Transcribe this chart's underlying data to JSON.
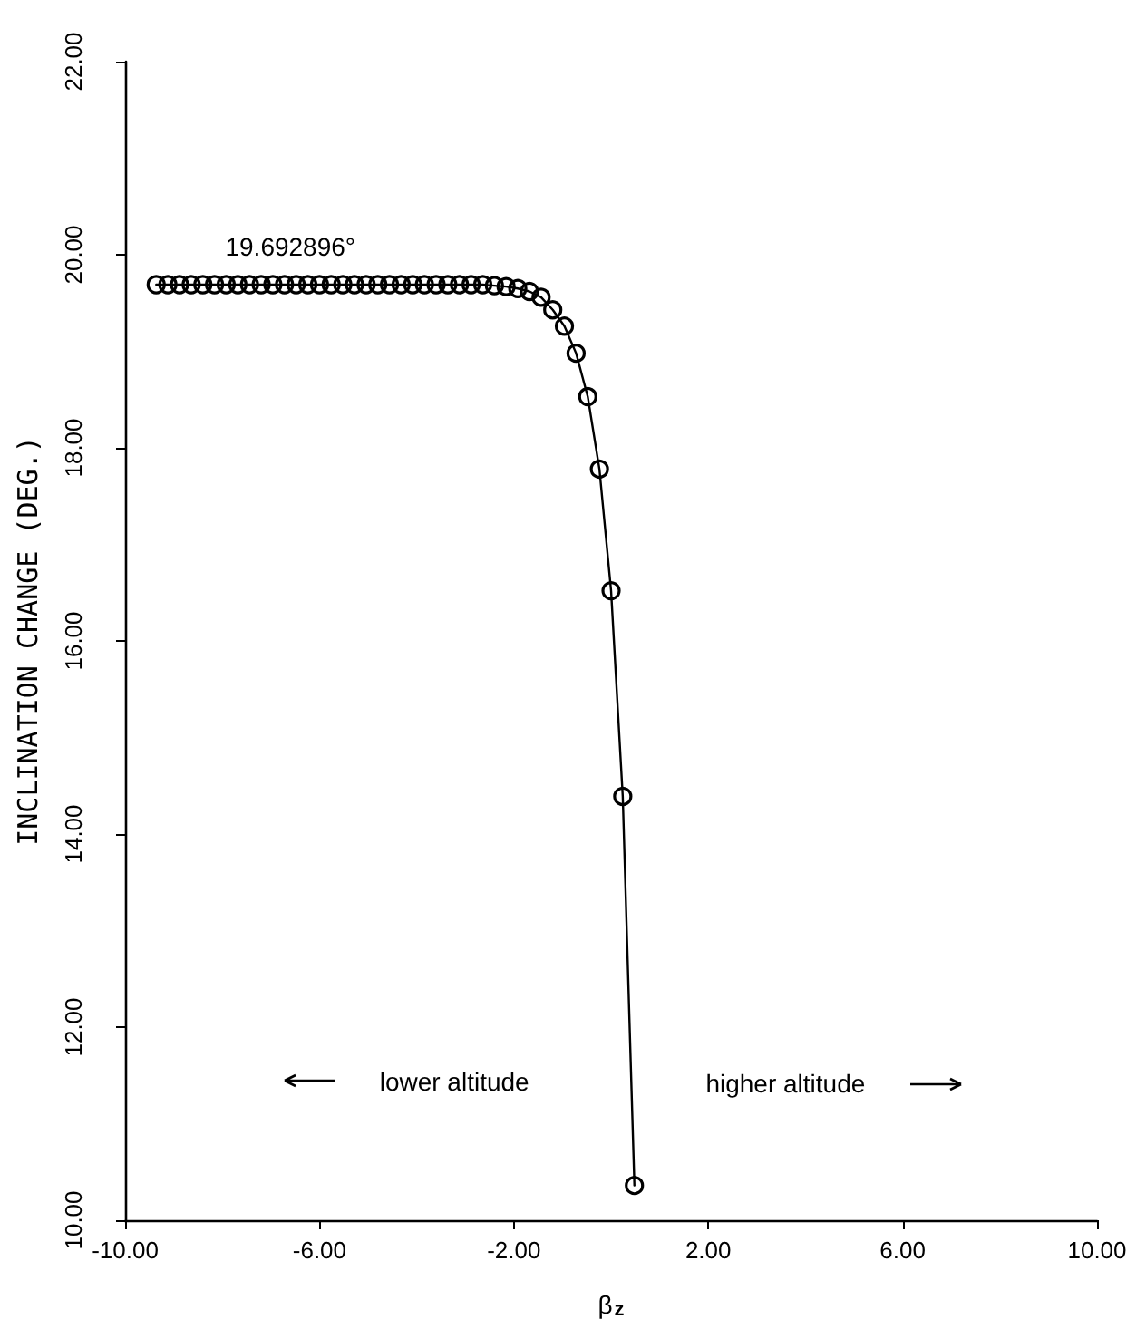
{
  "chart_data": {
    "type": "line",
    "xlabel": "β$_{z}$",
    "ylabel": "INCLINATION CHANGE (DEG.)",
    "x": [
      -9.36,
      -9.12,
      -8.88,
      -8.64,
      -8.4,
      -8.16,
      -7.92,
      -7.68,
      -7.44,
      -7.2,
      -6.96,
      -6.72,
      -6.48,
      -6.24,
      -6.0,
      -5.76,
      -5.52,
      -5.28,
      -5.04,
      -4.8,
      -4.56,
      -4.32,
      -4.08,
      -3.84,
      -3.6,
      -3.36,
      -3.12,
      -2.88,
      -2.64,
      -2.4,
      -2.16,
      -1.92,
      -1.68,
      -1.44,
      -1.2,
      -0.96,
      -0.72,
      -0.48,
      -0.24,
      0.0,
      0.24,
      0.48
    ],
    "series": [
      {
        "color": "#000000",
        "values": [
          19.69,
          19.69,
          19.69,
          19.69,
          19.69,
          19.69,
          19.69,
          19.69,
          19.69,
          19.69,
          19.69,
          19.69,
          19.69,
          19.69,
          19.69,
          19.69,
          19.69,
          19.69,
          19.69,
          19.69,
          19.69,
          19.69,
          19.69,
          19.69,
          19.69,
          19.69,
          19.69,
          19.69,
          19.69,
          19.68,
          19.67,
          19.65,
          19.62,
          19.56,
          19.43,
          19.26,
          18.98,
          18.53,
          17.78,
          16.52,
          14.39,
          10.36
        ]
      }
    ],
    "xlim": [
      -10,
      10
    ],
    "xticks": [
      {
        "value": -10,
        "label": "-10.00"
      },
      {
        "value": -6,
        "label": "-6.00"
      },
      {
        "value": -2,
        "label": "-2.00"
      },
      {
        "value": 2,
        "label": "2.00"
      },
      {
        "value": 6,
        "label": "6.00"
      },
      {
        "value": 10,
        "label": "10.00"
      }
    ],
    "ylim": [
      10,
      22
    ],
    "yticks": [
      {
        "value": 10,
        "label": "10.00"
      },
      {
        "value": 12,
        "label": "12.00"
      },
      {
        "value": 14,
        "label": "14.00"
      },
      {
        "value": 16,
        "label": "16.00"
      },
      {
        "value": 18,
        "label": "18.00"
      },
      {
        "value": 20,
        "label": "20.00"
      },
      {
        "value": 22,
        "label": "22.00"
      }
    ],
    "annotations": [
      {
        "text": "19.692896°",
        "x": -6.6,
        "y": 19.69
      },
      "lower altitude",
      "higher altitude"
    ],
    "marker": "circle",
    "line_style": "solid",
    "grid": false
  }
}
